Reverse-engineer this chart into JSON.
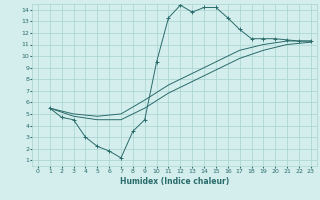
{
  "title": "",
  "xlabel": "Humidex (Indice chaleur)",
  "ylabel": "",
  "bg_color": "#d4eeed",
  "grid_color": "#a8d4d0",
  "line_color": "#2a6b6b",
  "xlim": [
    -0.5,
    23.5
  ],
  "ylim": [
    0.5,
    14.5
  ],
  "xticks": [
    0,
    1,
    2,
    3,
    4,
    5,
    6,
    7,
    8,
    9,
    10,
    11,
    12,
    13,
    14,
    15,
    16,
    17,
    18,
    19,
    20,
    21,
    22,
    23
  ],
  "yticks": [
    1,
    2,
    3,
    4,
    5,
    6,
    7,
    8,
    9,
    10,
    11,
    12,
    13,
    14
  ],
  "line1_x": [
    1,
    2,
    3,
    4,
    5,
    6,
    7,
    8,
    9,
    10,
    11,
    12,
    13,
    14,
    15,
    16,
    17,
    18,
    19,
    20,
    21,
    22,
    23
  ],
  "line1_y": [
    5.5,
    4.7,
    4.5,
    3.0,
    2.2,
    1.8,
    1.2,
    3.5,
    4.5,
    9.5,
    13.3,
    14.4,
    13.8,
    14.2,
    14.2,
    13.3,
    12.3,
    11.5,
    11.5,
    11.5,
    11.4,
    11.3,
    11.3
  ],
  "line2_x": [
    1,
    3,
    5,
    7,
    9,
    11,
    13,
    15,
    17,
    19,
    21,
    23
  ],
  "line2_y": [
    5.5,
    5.0,
    4.8,
    5.0,
    6.2,
    7.5,
    8.5,
    9.5,
    10.5,
    11.0,
    11.3,
    11.3
  ],
  "line3_x": [
    1,
    3,
    5,
    7,
    9,
    11,
    13,
    15,
    17,
    19,
    21,
    23
  ],
  "line3_y": [
    5.5,
    4.8,
    4.5,
    4.5,
    5.5,
    6.8,
    7.8,
    8.8,
    9.8,
    10.5,
    11.0,
    11.2
  ]
}
